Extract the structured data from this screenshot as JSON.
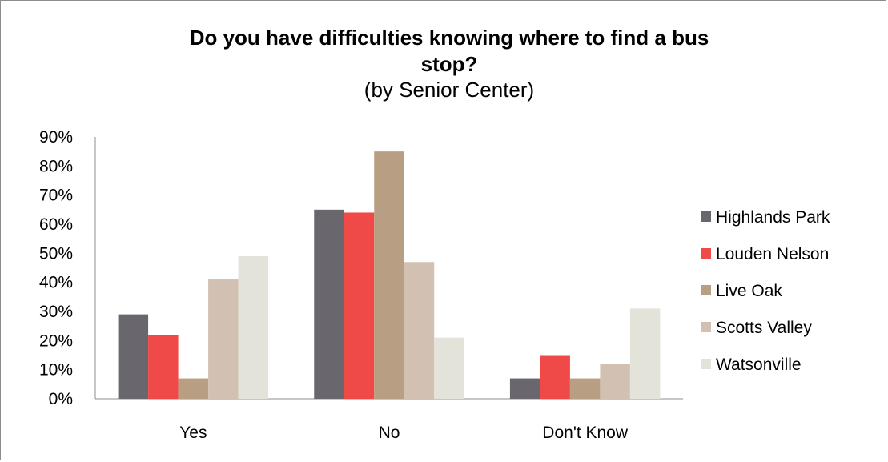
{
  "chart_data": {
    "type": "bar",
    "title": "Do you have difficulties knowing where to find a bus",
    "title_line2": "stop?",
    "subtitle": "(by Senior Center)",
    "categories": [
      "Yes",
      "No",
      "Don't Know"
    ],
    "series": [
      {
        "name": "Highlands Park",
        "values": [
          29,
          65,
          7
        ],
        "color": "#6a666e"
      },
      {
        "name": "Louden Nelson",
        "values": [
          22,
          64,
          15
        ],
        "color": "#ef4a47"
      },
      {
        "name": "Live Oak",
        "values": [
          7,
          85,
          7
        ],
        "color": "#b89f83"
      },
      {
        "name": "Scotts Valley",
        "values": [
          41,
          47,
          12
        ],
        "color": "#d2c1b3"
      },
      {
        "name": "Watsonville",
        "values": [
          49,
          21,
          31
        ],
        "color": "#e3e3da"
      }
    ],
    "ylim": [
      0,
      90
    ],
    "yticks": [
      "0%",
      "10%",
      "20%",
      "30%",
      "40%",
      "50%",
      "60%",
      "70%",
      "80%",
      "90%"
    ],
    "legend_position": "right",
    "grid": false
  }
}
